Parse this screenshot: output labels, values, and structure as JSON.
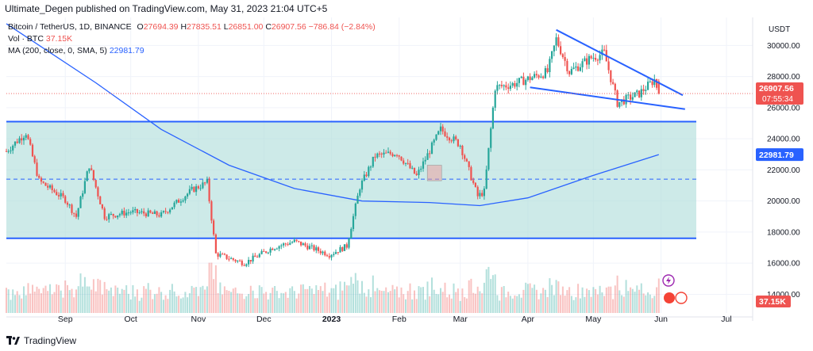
{
  "header": {
    "text": "Ultimate_Degen published on TradingView.com, May 31, 2023 21:04 UTC+5"
  },
  "legend": {
    "symbol_line": "Bitcoin / TetherUS, 1D, BINANCE",
    "o_label": "O",
    "o_value": "27694.39",
    "h_label": "H",
    "h_value": "27835.51",
    "l_label": "L",
    "l_value": "26851.00",
    "c_label": "C",
    "c_value": "26907.56",
    "change": "−786.84 (−2.84%)",
    "vol_label": "Vol · BTC",
    "vol_value": "37.15K",
    "ma_label": "MA (200, close, 0, SMA, 5)",
    "ma_value": "22981.79"
  },
  "footer": {
    "brand": "TradingView"
  },
  "colors": {
    "up": "#26a69a",
    "down": "#ef5350",
    "ma": "#2962ff",
    "zone": "#b2dfdb",
    "line": "#2962ff"
  },
  "chart_data": {
    "type": "candlestick",
    "y_unit": "USDT",
    "ylim": [
      12800,
      31800
    ],
    "y_ticks": [
      "30000.00",
      "28000.00",
      "26000.00",
      "24000.00",
      "22000.00",
      "20000.00",
      "18000.00",
      "16000.00",
      "14000.00"
    ],
    "y_tick_values": [
      30000,
      28000,
      26000,
      24000,
      22000,
      20000,
      18000,
      16000,
      14000
    ],
    "x_ticks": [
      {
        "label": "Sep",
        "date": "2022-09-01"
      },
      {
        "label": "Oct",
        "date": "2022-10-01"
      },
      {
        "label": "Nov",
        "date": "2022-11-01"
      },
      {
        "label": "Dec",
        "date": "2022-12-01"
      },
      {
        "label": "2023",
        "date": "2023-01-01"
      },
      {
        "label": "Feb",
        "date": "2023-02-01"
      },
      {
        "label": "Mar",
        "date": "2023-03-01"
      },
      {
        "label": "Apr",
        "date": "2023-04-01"
      },
      {
        "label": "May",
        "date": "2023-05-01"
      },
      {
        "label": "Jun",
        "date": "2023-06-01"
      },
      {
        "label": "Jul",
        "date": "2023-07-01"
      }
    ],
    "price_path": [
      [
        "2022-08-05",
        23200
      ],
      [
        "2022-08-14",
        24400
      ],
      [
        "2022-08-20",
        21300
      ],
      [
        "2022-09-01",
        20100
      ],
      [
        "2022-09-06",
        19000
      ],
      [
        "2022-09-12",
        22300
      ],
      [
        "2022-09-19",
        19000
      ],
      [
        "2022-10-01",
        19300
      ],
      [
        "2022-10-15",
        19100
      ],
      [
        "2022-10-29",
        20700
      ],
      [
        "2022-11-05",
        21200
      ],
      [
        "2022-11-09",
        16600
      ],
      [
        "2022-11-22",
        16000
      ],
      [
        "2022-12-05",
        17000
      ],
      [
        "2022-12-15",
        17400
      ],
      [
        "2022-12-31",
        16550
      ],
      [
        "2023-01-08",
        17100
      ],
      [
        "2023-01-14",
        20900
      ],
      [
        "2023-01-21",
        22900
      ],
      [
        "2023-01-31",
        23100
      ],
      [
        "2023-02-09",
        21600
      ],
      [
        "2023-02-20",
        24600
      ],
      [
        "2023-03-01",
        23600
      ],
      [
        "2023-03-09",
        20300
      ],
      [
        "2023-03-12",
        20600
      ],
      [
        "2023-03-17",
        27300
      ],
      [
        "2023-03-25",
        27500
      ],
      [
        "2023-04-10",
        28300
      ],
      [
        "2023-04-14",
        30400
      ],
      [
        "2023-04-20",
        28300
      ],
      [
        "2023-04-30",
        29200
      ],
      [
        "2023-05-06",
        29500
      ],
      [
        "2023-05-12",
        26300
      ],
      [
        "2023-05-22",
        26900
      ],
      [
        "2023-05-29",
        27800
      ],
      [
        "2023-05-31",
        26907.56
      ]
    ],
    "ma200_path": [
      [
        "2022-08-05",
        31400
      ],
      [
        "2022-09-15",
        27600
      ],
      [
        "2022-10-15",
        24600
      ],
      [
        "2022-11-15",
        22300
      ],
      [
        "2022-12-15",
        20800
      ],
      [
        "2023-01-15",
        20000
      ],
      [
        "2023-02-15",
        19900
      ],
      [
        "2023-03-10",
        19700
      ],
      [
        "2023-04-01",
        20200
      ],
      [
        "2023-04-30",
        21600
      ],
      [
        "2023-05-31",
        22981.79
      ]
    ],
    "zone": {
      "top": 25100,
      "bottom": 17600,
      "mid": 21400
    },
    "wedge": {
      "upper": [
        [
          "2023-04-14",
          31000
        ],
        [
          "2023-06-11",
          26800
        ]
      ],
      "lower": [
        [
          "2023-04-02",
          27300
        ],
        [
          "2023-06-12",
          25900
        ]
      ]
    },
    "last_price": {
      "label": "26907.56",
      "countdown": "07:55:34",
      "value": 26907.56
    },
    "ma_last": {
      "label": "22981.79",
      "value": 22981.79
    },
    "vol_last": {
      "label": "37.15K"
    }
  }
}
